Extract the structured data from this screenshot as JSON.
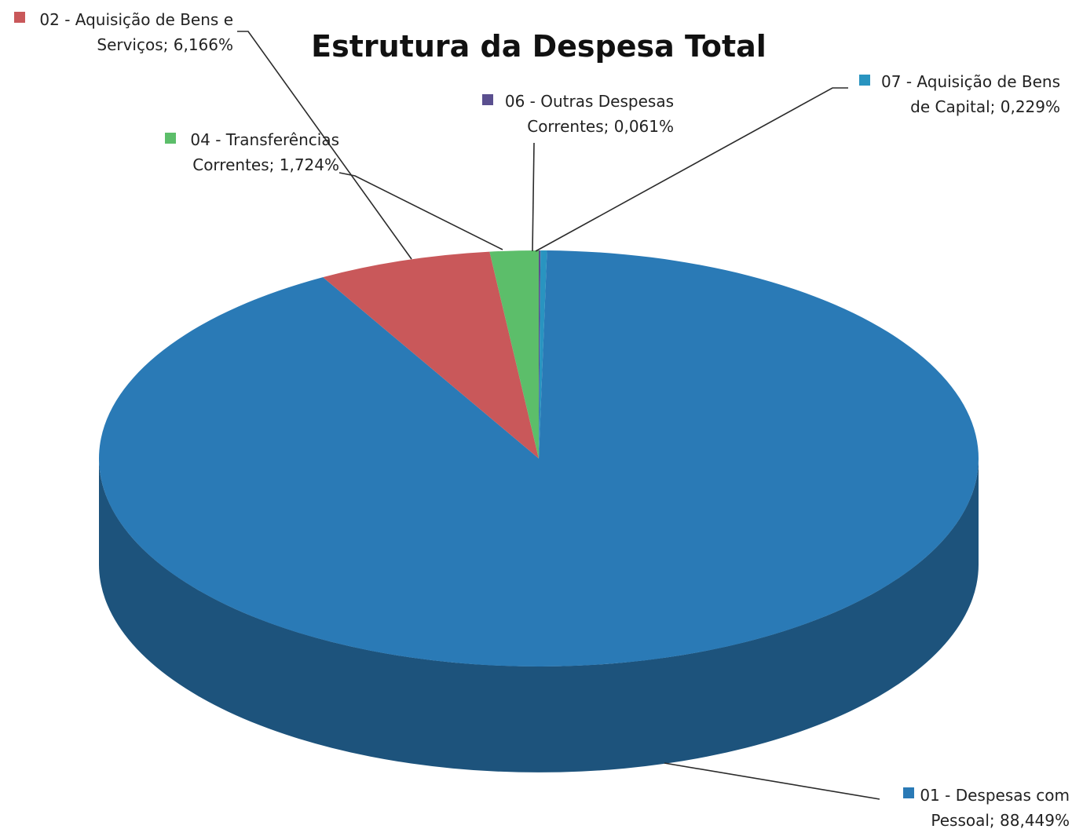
{
  "chart_data": {
    "type": "pie",
    "title": "Estrutura da Despesa Total",
    "unit": "%",
    "slices": [
      {
        "label_lines": [
          "01 - Despesas com",
          "Pessoal; 88,449%"
        ],
        "name": "01 - Despesas com Pessoal",
        "value": 88.449,
        "color": "#2a7ab6"
      },
      {
        "label_lines": [
          "02 - Aquisição de Bens e",
          "Serviços; 6,166%"
        ],
        "name": "02 - Aquisição de Bens e Serviços",
        "value": 6.166,
        "color": "#c9585a"
      },
      {
        "label_lines": [
          "04 - Transferências",
          "Correntes; 1,724%"
        ],
        "name": "04 - Transferências Correntes",
        "value": 1.724,
        "color": "#5cbe6a"
      },
      {
        "label_lines": [
          "06 - Outras Despesas",
          "Correntes; 0,061%"
        ],
        "name": "06 - Outras Despesas Correntes",
        "value": 0.061,
        "color": "#5a4f8f"
      },
      {
        "label_lines": [
          "07 - Aquisição de Bens",
          "de Capital; 0,229%"
        ],
        "name": "07 - Aquisição de Bens de Capital",
        "value": 0.229,
        "color": "#2994c0"
      }
    ],
    "legend": "none",
    "data_labels": "outside-with-leader-lines",
    "style": "3d-pie"
  }
}
